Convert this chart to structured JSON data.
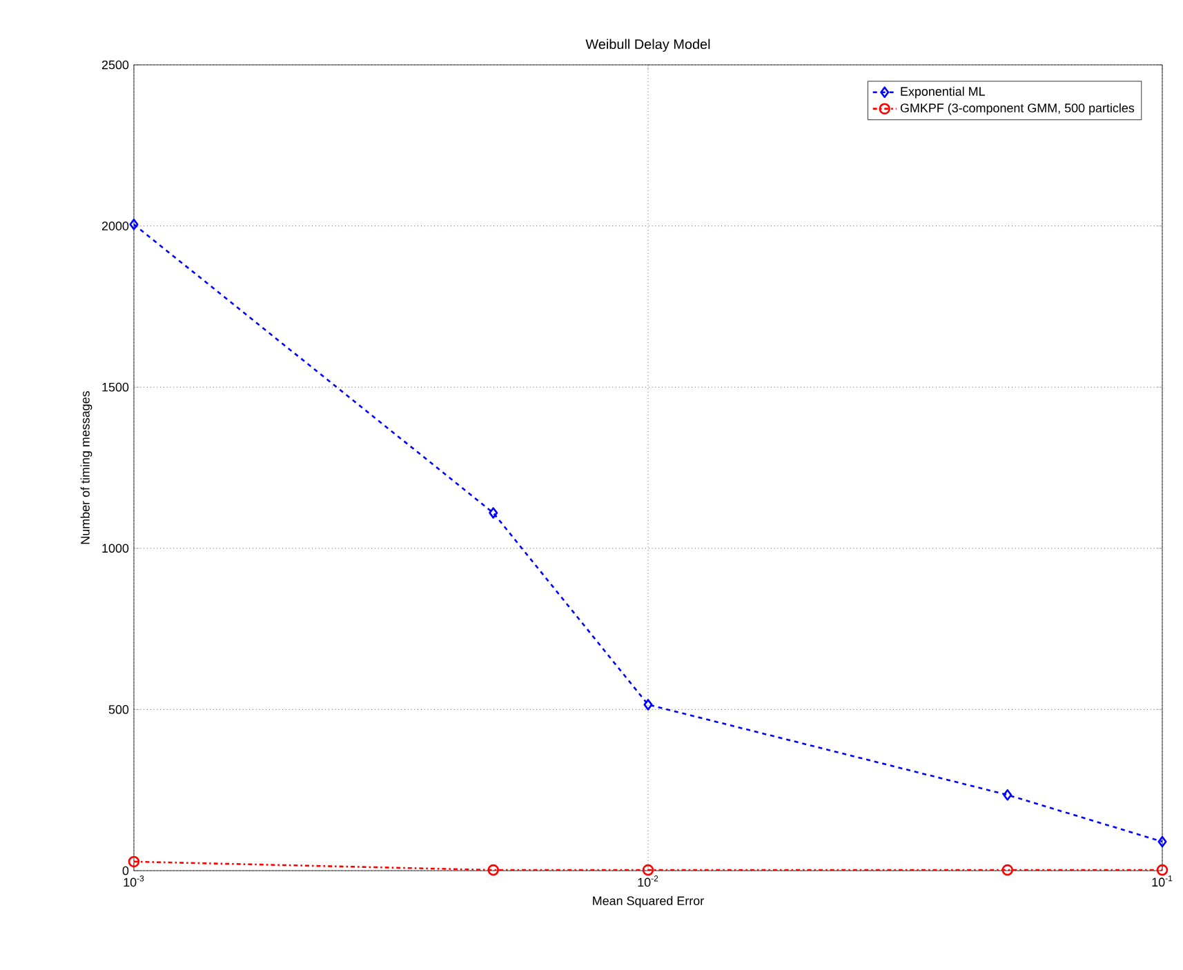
{
  "chart_data": {
    "type": "line",
    "title": "Weibull Delay Model",
    "xlabel": "Mean Squared Error",
    "ylabel": "Number of timing messages",
    "log": "x",
    "xlim": [
      0.001,
      0.1
    ],
    "xticks": [
      {
        "value": 0.001,
        "label": "10$^{-3}$"
      },
      {
        "value": 0.01,
        "label": "10$^{-2}$"
      },
      {
        "value": 0.1,
        "label": "10$^{-1}$"
      }
    ],
    "ylim": [
      0,
      2500
    ],
    "yticks": [
      0,
      500,
      1000,
      1500,
      2000,
      2500
    ],
    "grid": true,
    "legend": "top right",
    "x": [
      0.001,
      0.005,
      0.01,
      0.05,
      0.1
    ],
    "series": [
      {
        "name": "Exponential ML",
        "color": "#0000ff",
        "values": [
          2005,
          1110,
          515,
          235,
          90
        ],
        "marker": "diamond",
        "line_style": "dashed"
      },
      {
        "name": "GMKPF (3-component GMM, 500 particles",
        "color": "#ff0000",
        "values": [
          28,
          2,
          2,
          2,
          2
        ],
        "marker": "circle",
        "line_style": "dashdot"
      }
    ]
  }
}
